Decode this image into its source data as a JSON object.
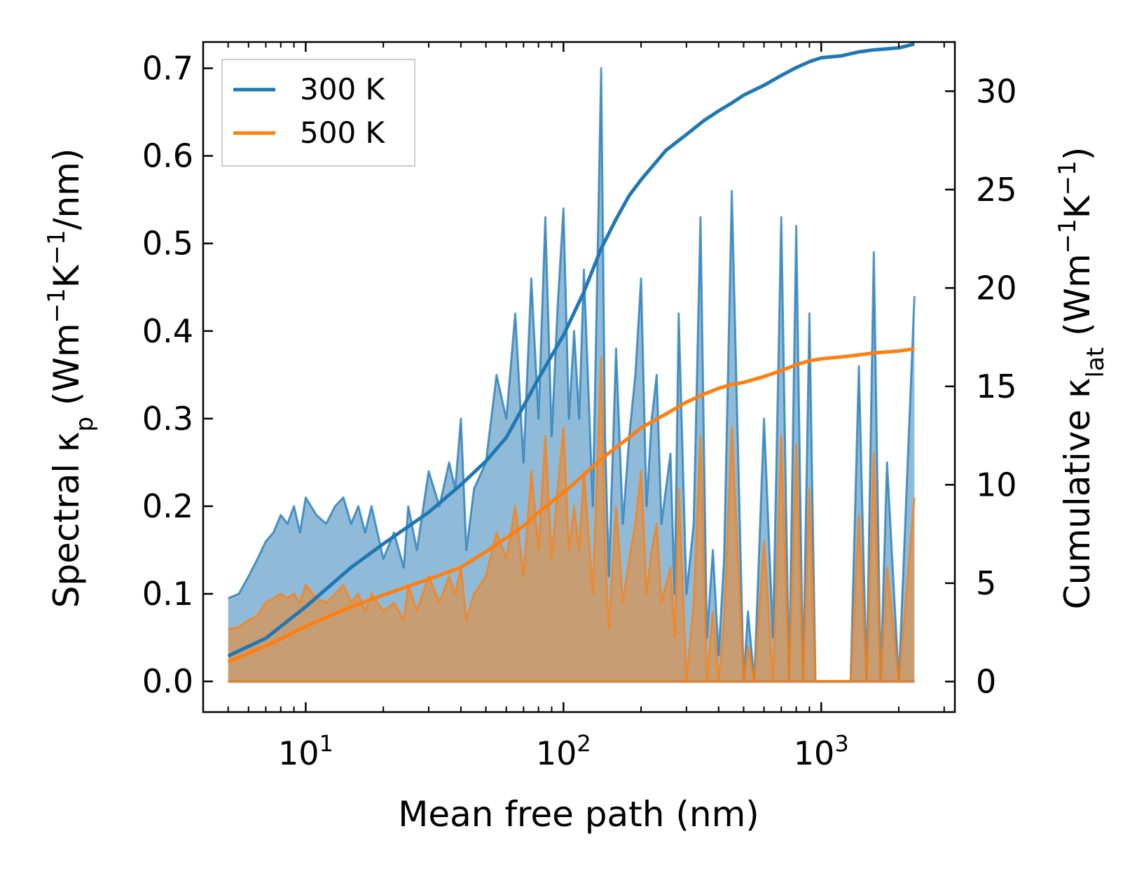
{
  "chart_data": {
    "type": "line",
    "xscale": "log",
    "xlabel": "Mean free path (nm)",
    "ylabel_left": "Spectral κ_p (Wm⁻¹K⁻¹/nm)",
    "ylabel_right": "Cumulative κ_lat (Wm⁻¹K⁻¹)",
    "xlim": [
      4,
      3300
    ],
    "ylim_left": [
      -0.035,
      0.73
    ],
    "ylim_right": [
      -1.55,
      32.5
    ],
    "x_ticks": [
      {
        "mant": "10",
        "exp": "1",
        "value": 10
      },
      {
        "mant": "10",
        "exp": "2",
        "value": 100
      },
      {
        "mant": "10",
        "exp": "3",
        "value": 1000
      }
    ],
    "y_ticks_left": [
      "0.0",
      "0.1",
      "0.2",
      "0.3",
      "0.4",
      "0.5",
      "0.6",
      "0.7"
    ],
    "y_tick_values_left": [
      0,
      0.1,
      0.2,
      0.3,
      0.4,
      0.5,
      0.6,
      0.7
    ],
    "y_ticks_right": [
      "0",
      "5",
      "10",
      "15",
      "20",
      "25",
      "30"
    ],
    "y_tick_values_right": [
      0,
      5,
      10,
      15,
      20,
      25,
      30
    ],
    "legend": {
      "position": "top-left",
      "entries": [
        {
          "label": "300 K",
          "color": "#1f77b4"
        },
        {
          "label": "500 K",
          "color": "#ff7f0e"
        }
      ]
    },
    "series": [
      {
        "name": "300 K",
        "color": "#1f77b4",
        "spectral": {
          "x": [
            5,
            5.5,
            6,
            6.5,
            7,
            7.5,
            8,
            8.5,
            9,
            9.5,
            10,
            11,
            12,
            13,
            14,
            15,
            16,
            17,
            18,
            20,
            22,
            24,
            25,
            27,
            30,
            33,
            36,
            38,
            40,
            42,
            45,
            50,
            55,
            60,
            65,
            70,
            75,
            80,
            85,
            90,
            95,
            100,
            105,
            110,
            115,
            120,
            130,
            140,
            145,
            150,
            160,
            170,
            180,
            190,
            200,
            210,
            220,
            230,
            240,
            260,
            270,
            280,
            300,
            320,
            340,
            360,
            380,
            400,
            420,
            450,
            500,
            520,
            550,
            600,
            650,
            700,
            750,
            800,
            850,
            900,
            950,
            1000,
            1300,
            1400,
            1500,
            1600,
            1700,
            1800,
            2000,
            2300
          ],
          "y": [
            0.095,
            0.1,
            0.12,
            0.14,
            0.16,
            0.17,
            0.19,
            0.18,
            0.2,
            0.17,
            0.21,
            0.19,
            0.18,
            0.2,
            0.21,
            0.18,
            0.2,
            0.17,
            0.2,
            0.14,
            0.17,
            0.13,
            0.2,
            0.15,
            0.24,
            0.2,
            0.25,
            0.22,
            0.3,
            0.15,
            0.22,
            0.25,
            0.35,
            0.3,
            0.42,
            0.25,
            0.46,
            0.3,
            0.53,
            0.28,
            0.43,
            0.54,
            0.3,
            0.4,
            0.3,
            0.47,
            0.2,
            0.7,
            0.28,
            0.12,
            0.38,
            0.18,
            0.28,
            0.35,
            0.46,
            0.2,
            0.3,
            0.35,
            0.18,
            0.26,
            0.1,
            0.42,
            0.1,
            0.18,
            0.53,
            0.05,
            0.15,
            0.03,
            0.14,
            0.56,
            0.0,
            0.08,
            0.0,
            0.3,
            0.05,
            0.53,
            0.0,
            0.52,
            0.0,
            0.42,
            0.0,
            0.0,
            0.0,
            0.36,
            0.0,
            0.49,
            0.0,
            0.25,
            0.0,
            0.44
          ]
        },
        "cumulative": {
          "x": [
            5,
            7,
            10,
            15,
            20,
            30,
            40,
            50,
            60,
            70,
            80,
            100,
            120,
            140,
            160,
            180,
            200,
            250,
            300,
            350,
            400,
            450,
            500,
            600,
            700,
            800,
            900,
            1000,
            1200,
            1400,
            1600,
            2000,
            2300
          ],
          "y": [
            1.3,
            2.2,
            3.8,
            5.8,
            7.0,
            8.6,
            10.0,
            11.2,
            12.4,
            14.0,
            15.4,
            17.6,
            19.8,
            22.0,
            23.5,
            24.7,
            25.5,
            27.0,
            27.8,
            28.5,
            29.0,
            29.4,
            29.8,
            30.3,
            30.8,
            31.2,
            31.5,
            31.7,
            31.8,
            32.0,
            32.1,
            32.2,
            32.4
          ]
        }
      },
      {
        "name": "500 K",
        "color": "#ff7f0e",
        "spectral": {
          "x": [
            5,
            5.5,
            6,
            6.5,
            7,
            7.5,
            8,
            8.5,
            9,
            9.5,
            10,
            11,
            12,
            13,
            14,
            15,
            16,
            17,
            18,
            20,
            22,
            24,
            25,
            27,
            30,
            33,
            36,
            38,
            40,
            42,
            45,
            50,
            55,
            60,
            65,
            70,
            75,
            80,
            85,
            90,
            95,
            100,
            105,
            110,
            115,
            120,
            130,
            140,
            145,
            150,
            160,
            170,
            180,
            190,
            200,
            210,
            220,
            230,
            240,
            260,
            270,
            280,
            300,
            320,
            340,
            360,
            380,
            400,
            420,
            450,
            500,
            520,
            550,
            600,
            650,
            700,
            750,
            800,
            850,
            900,
            950,
            1000,
            1300,
            1400,
            1500,
            1600,
            1700,
            1800,
            2000,
            2300
          ],
          "y": [
            0.06,
            0.062,
            0.07,
            0.075,
            0.09,
            0.095,
            0.1,
            0.095,
            0.1,
            0.09,
            0.11,
            0.095,
            0.09,
            0.1,
            0.11,
            0.09,
            0.1,
            0.08,
            0.1,
            0.08,
            0.09,
            0.07,
            0.11,
            0.08,
            0.12,
            0.09,
            0.12,
            0.1,
            0.13,
            0.07,
            0.1,
            0.12,
            0.17,
            0.14,
            0.2,
            0.12,
            0.24,
            0.15,
            0.28,
            0.14,
            0.22,
            0.29,
            0.15,
            0.2,
            0.15,
            0.24,
            0.1,
            0.37,
            0.15,
            0.06,
            0.2,
            0.09,
            0.14,
            0.18,
            0.24,
            0.1,
            0.15,
            0.18,
            0.09,
            0.13,
            0.05,
            0.22,
            0.0,
            0.09,
            0.28,
            0.0,
            0.08,
            0.0,
            0.07,
            0.29,
            0.0,
            0.04,
            0.0,
            0.16,
            0.0,
            0.28,
            0.0,
            0.27,
            0.0,
            0.22,
            0.0,
            0.0,
            0.0,
            0.19,
            0.0,
            0.26,
            0.0,
            0.13,
            0.0,
            0.21
          ]
        },
        "cumulative": {
          "x": [
            5,
            7,
            10,
            15,
            20,
            30,
            40,
            50,
            60,
            70,
            80,
            100,
            120,
            140,
            160,
            180,
            200,
            250,
            300,
            350,
            400,
            450,
            500,
            600,
            700,
            800,
            900,
            1000,
            1200,
            1400,
            1600,
            2000,
            2300
          ],
          "y": [
            1.0,
            1.8,
            2.8,
            3.8,
            4.4,
            5.2,
            5.8,
            6.6,
            7.3,
            7.9,
            8.6,
            9.6,
            10.5,
            11.3,
            11.9,
            12.4,
            12.9,
            13.6,
            14.2,
            14.6,
            14.9,
            15.1,
            15.2,
            15.5,
            15.8,
            16.1,
            16.3,
            16.4,
            16.5,
            16.6,
            16.7,
            16.8,
            16.9
          ]
        }
      }
    ]
  }
}
